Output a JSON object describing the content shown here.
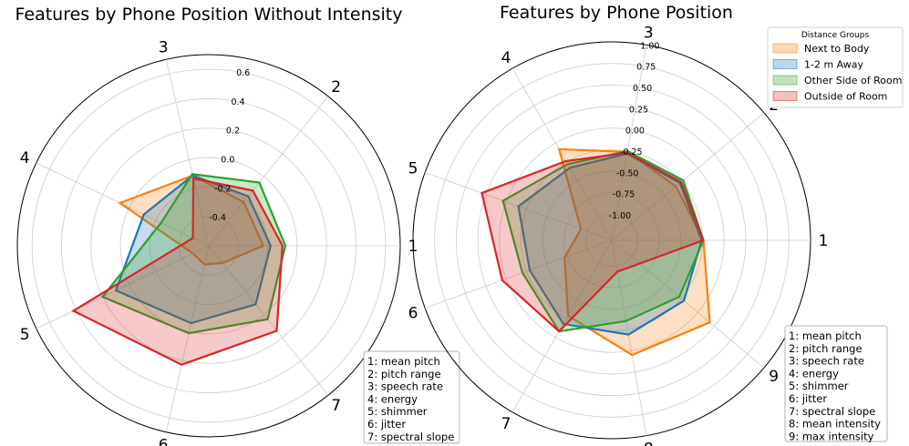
{
  "chart_data": [
    {
      "type": "radar",
      "title": "Features by Phone Position Without Intensity",
      "axes": [
        "1",
        "2",
        "3",
        "4",
        "5",
        "6",
        "7"
      ],
      "rlim": [
        -0.6,
        0.7
      ],
      "r_ticks": [
        "-0.4",
        "-0.2",
        "0.0",
        "0.2",
        "0.4",
        "0.6"
      ],
      "r_tick_values": [
        -0.4,
        -0.2,
        0.0,
        0.2,
        0.4,
        0.6
      ],
      "series": [
        {
          "name": "Next to Body",
          "color": "#ff7f0e",
          "values": [
            -0.23,
            -0.22,
            -0.11,
            0.07,
            -0.48,
            -0.47,
            -0.45
          ]
        },
        {
          "name": "1-2 m Away",
          "color": "#1f77b4",
          "values": [
            -0.18,
            -0.17,
            -0.11,
            -0.11,
            0.1,
            -0.06,
            -0.09
          ]
        },
        {
          "name": "Other Side of Room",
          "color": "#2ca02c",
          "values": [
            -0.08,
            -0.05,
            -0.1,
            -0.24,
            0.2,
            0.01,
            0.04
          ]
        },
        {
          "name": "Outside of Room",
          "color": "#d62728",
          "values": [
            -0.1,
            -0.12,
            -0.13,
            -0.48,
            0.42,
            0.23,
            0.14
          ]
        }
      ],
      "legend_items": [
        "1: mean pitch",
        "2: pitch range",
        "3: speech rate",
        "4: energy",
        "5: shimmer",
        "6: jitter",
        "7: spectral slope"
      ],
      "grid": true
    },
    {
      "type": "radar",
      "title": "Features by Phone Position",
      "axes": [
        "1",
        "2",
        "3",
        "4",
        "5",
        "6",
        "7",
        "8",
        "9"
      ],
      "rlim": [
        -1.3,
        1.0
      ],
      "r_ticks": [
        "-1.00",
        "-0.75",
        "-0.50",
        "-0.25",
        "0.00",
        "0.25",
        "0.50",
        "0.75",
        "1.00"
      ],
      "r_tick_values": [
        -1.0,
        -0.75,
        -0.5,
        -0.25,
        0.0,
        0.25,
        0.5,
        0.75,
        1.0
      ],
      "series": [
        {
          "name": "Next to Body",
          "color": "#ff7f0e",
          "values": [
            -0.24,
            -0.33,
            -0.26,
            -0.08,
            -0.92,
            -0.72,
            -0.29,
            0.05,
            0.18
          ]
        },
        {
          "name": "1-2 m Away",
          "color": "#1f77b4",
          "values": [
            -0.26,
            -0.27,
            -0.28,
            -0.33,
            -0.15,
            -0.29,
            -0.18,
            -0.19,
            -0.21
          ]
        },
        {
          "name": "Other Side of Room",
          "color": "#2ca02c",
          "values": [
            -0.24,
            -0.22,
            -0.25,
            -0.28,
            0.04,
            -0.2,
            -0.08,
            -0.35,
            -0.28
          ]
        },
        {
          "name": "Outside of Room",
          "color": "#d62728",
          "values": [
            -0.24,
            -0.25,
            -0.27,
            -0.24,
            0.3,
            0.05,
            -0.08,
            -0.93,
            -0.88
          ]
        }
      ],
      "legend_title": "Distance Groups",
      "legend_items": [
        "1: mean pitch",
        "2: pitch range",
        "3: speech rate",
        "4: energy",
        "5: shimmer",
        "6: jitter",
        "7: spectral slope",
        "8: mean intensity",
        "9: max intensity"
      ],
      "grid": true
    }
  ]
}
